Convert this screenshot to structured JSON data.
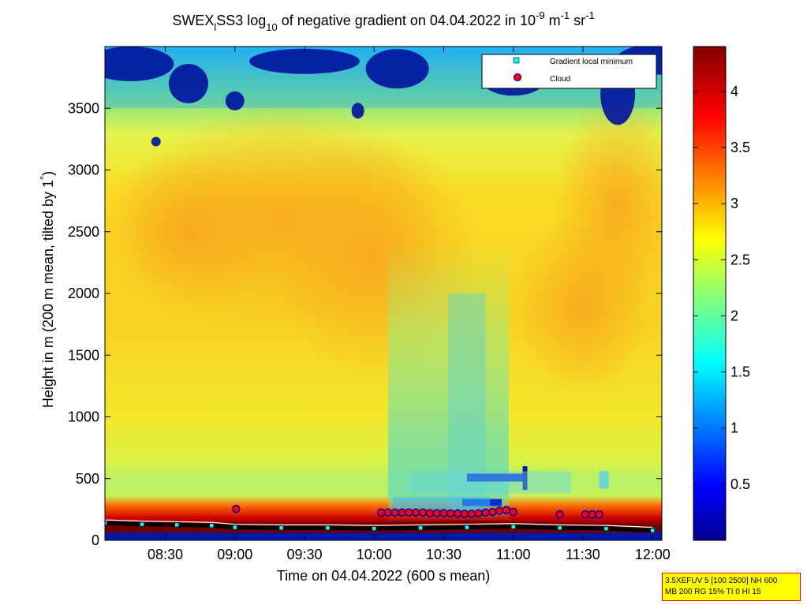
{
  "chart_data": {
    "type": "heatmap",
    "title_prefix": "SWEX",
    "title_subscript_1": "l",
    "title_mid": "SS3 log",
    "title_subscript_2": "10",
    "title_suffix": " of negative gradient on 04.04.2022 in 10",
    "title_exp_1": "-9",
    "title_unit_1": " m",
    "title_exp_2": "-1",
    "title_unit_2": " sr",
    "title_exp_3": "-1",
    "xlabel": "Time on 04.04.2022 (600 s mean)",
    "ylabel_prefix": "Height in m (200 m mean, tilted by 1",
    "ylabel_degree": "°",
    "ylabel_suffix": ")",
    "x_ticks": [
      "08:30",
      "09:00",
      "09:30",
      "10:00",
      "10:30",
      "11:00",
      "11:30",
      "12:00"
    ],
    "x_tick_minutes": [
      510,
      540,
      570,
      600,
      630,
      660,
      690,
      720
    ],
    "xlim_minutes": [
      484,
      724
    ],
    "y_ticks": [
      "0",
      "500",
      "1000",
      "1500",
      "2000",
      "2500",
      "3000",
      "3500"
    ],
    "y_tick_values": [
      0,
      500,
      1000,
      1500,
      2000,
      2500,
      3000,
      3500
    ],
    "ylim": [
      0,
      4000
    ],
    "colorbar": {
      "ticks": [
        "0.5",
        "1",
        "1.5",
        "2",
        "2.5",
        "3",
        "3.5",
        "4"
      ],
      "tick_values": [
        0.5,
        1,
        1.5,
        2,
        2.5,
        3,
        3.5,
        4
      ],
      "clim": [
        0,
        4.4
      ],
      "colormap": "jet"
    },
    "legend": {
      "placement": "top-right",
      "entries": [
        {
          "label": "Gradient local minimum",
          "marker": "square",
          "color": "#00ffff"
        },
        {
          "label": "Cloud",
          "marker": "circle",
          "color": "#ff0000"
        }
      ]
    },
    "clouds": [
      {
        "time": 540.5,
        "height": 255
      },
      {
        "time": 603,
        "height": 225
      },
      {
        "time": 606,
        "height": 225
      },
      {
        "time": 609,
        "height": 225
      },
      {
        "time": 612,
        "height": 225
      },
      {
        "time": 615,
        "height": 225
      },
      {
        "time": 618,
        "height": 225
      },
      {
        "time": 621,
        "height": 225
      },
      {
        "time": 624,
        "height": 220
      },
      {
        "time": 627,
        "height": 220
      },
      {
        "time": 630,
        "height": 220
      },
      {
        "time": 633,
        "height": 218
      },
      {
        "time": 636,
        "height": 218
      },
      {
        "time": 639,
        "height": 215
      },
      {
        "time": 642,
        "height": 215
      },
      {
        "time": 645,
        "height": 220
      },
      {
        "time": 648,
        "height": 225
      },
      {
        "time": 651,
        "height": 230
      },
      {
        "time": 654,
        "height": 240
      },
      {
        "time": 657,
        "height": 245
      },
      {
        "time": 660,
        "height": 230
      },
      {
        "time": 680,
        "height": 210
      },
      {
        "time": 691,
        "height": 210
      },
      {
        "time": 694,
        "height": 210
      },
      {
        "time": 697,
        "height": 210
      }
    ],
    "gradient_minimum_profile": [
      [
        484,
        140
      ],
      [
        500,
        130
      ],
      [
        515,
        125
      ],
      [
        530,
        120
      ],
      [
        540,
        105
      ],
      [
        560,
        100
      ],
      [
        580,
        100
      ],
      [
        600,
        95
      ],
      [
        620,
        100
      ],
      [
        640,
        105
      ],
      [
        660,
        110
      ],
      [
        680,
        100
      ],
      [
        700,
        95
      ],
      [
        720,
        80
      ]
    ],
    "cloud_base_band": [
      [
        484,
        250
      ],
      [
        520,
        240
      ],
      [
        560,
        230
      ],
      [
        600,
        235
      ],
      [
        640,
        250
      ],
      [
        680,
        230
      ],
      [
        720,
        215
      ]
    ]
  },
  "info_box": {
    "line1": "3.5XEFUV 5 [100 2500] NH 600",
    "line2": "MB 200 RG 15% TI 0 HI 15"
  }
}
